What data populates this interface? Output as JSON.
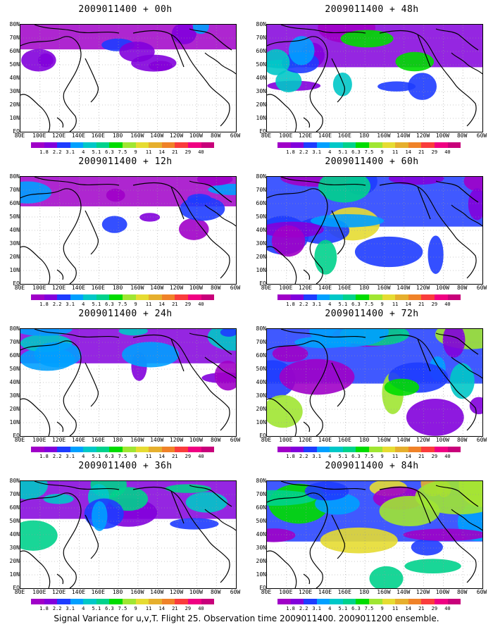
{
  "panels": [
    {
      "title": "2009011400 + 00h",
      "intensity": 0.18
    },
    {
      "title": "2009011400 + 48h",
      "intensity": 0.55
    },
    {
      "title": "2009011400 + 12h",
      "intensity": 0.28
    },
    {
      "title": "2009011400 + 60h",
      "intensity": 0.7
    },
    {
      "title": "2009011400 + 24h",
      "intensity": 0.38
    },
    {
      "title": "2009011400 + 72h",
      "intensity": 0.8
    },
    {
      "title": "2009011400 + 36h",
      "intensity": 0.45
    },
    {
      "title": "2009011400 + 84h",
      "intensity": 0.92
    }
  ],
  "lat_labels": [
    "80N",
    "70N",
    "60N",
    "50N",
    "40N",
    "30N",
    "20N",
    "10N",
    "EQ"
  ],
  "lon_labels": [
    "80E",
    "100E",
    "120E",
    "140E",
    "160E",
    "180",
    "160W",
    "140W",
    "120W",
    "100W",
    "80W",
    "60W"
  ],
  "colorbar": {
    "labels": [
      "1.8",
      "2.2",
      "3.1",
      "4",
      "5.1",
      "6.3",
      "7.5",
      "9",
      "11",
      "14",
      "21",
      "29",
      "40"
    ],
    "colors": [
      "#a000c8",
      "#8200dc",
      "#1e3cff",
      "#00a0ff",
      "#00c8c8",
      "#00d28c",
      "#00dc00",
      "#a0e632",
      "#e6dc32",
      "#e6af2d",
      "#f08228",
      "#fa3c3c",
      "#f00082",
      "#c8007a"
    ]
  },
  "caption": "Signal Variance for u,v,T. Flight 25. Observation time 2009011400. 2009011200 ensemble."
}
